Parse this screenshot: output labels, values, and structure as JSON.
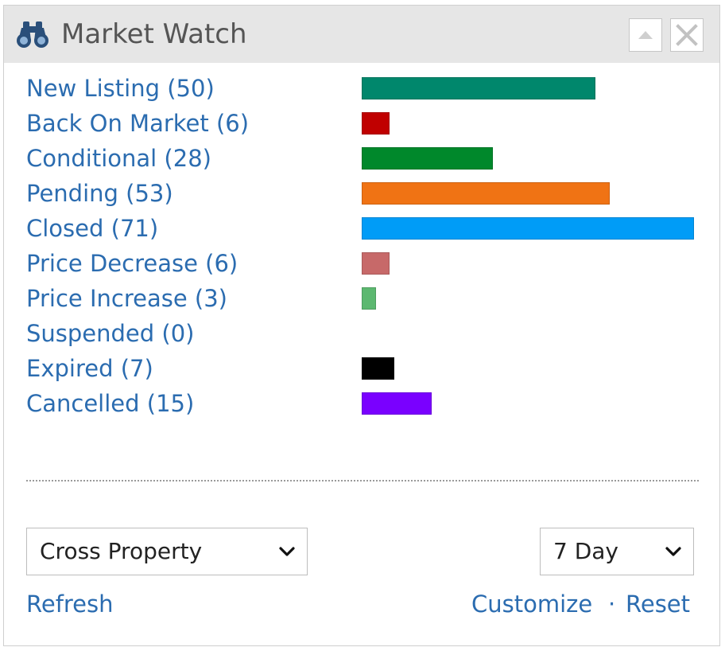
{
  "header": {
    "title": "Market Watch",
    "icon": "binoculars-icon",
    "buttons": [
      "collapse-up-icon",
      "close-icon"
    ]
  },
  "colors": {
    "header_bg": "#e6e6e6",
    "link": "#2b6cb0"
  },
  "statuses": [
    {
      "label": "New Listing (50)",
      "count": 50,
      "color": "#00876c"
    },
    {
      "label": "Back On Market (6)",
      "count": 6,
      "color": "#c00000"
    },
    {
      "label": "Conditional (28)",
      "count": 28,
      "color": "#00882b"
    },
    {
      "label": "Pending (53)",
      "count": 53,
      "color": "#f07314"
    },
    {
      "label": "Closed (71)",
      "count": 71,
      "color": "#009cf7"
    },
    {
      "label": "Price Decrease (6)",
      "count": 6,
      "color": "#c76969"
    },
    {
      "label": "Price Increase (3)",
      "count": 3,
      "color": "#5cb870"
    },
    {
      "label": "Suspended (0)",
      "count": 0,
      "color": "#999999"
    },
    {
      "label": "Expired (7)",
      "count": 7,
      "color": "#000000"
    },
    {
      "label": "Cancelled (15)",
      "count": 15,
      "color": "#7a00ff"
    }
  ],
  "controls": {
    "property_type": "Cross Property",
    "period": "7 Day"
  },
  "links": {
    "refresh": "Refresh",
    "customize": "Customize",
    "separator": "·",
    "reset": "Reset"
  }
}
